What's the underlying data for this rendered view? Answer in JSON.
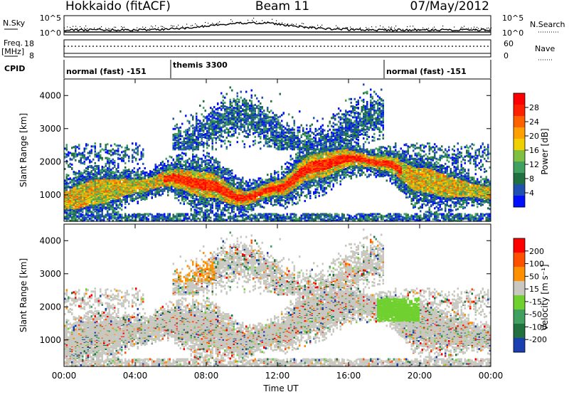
{
  "header": {
    "station": "Hokkaido (fitACF)",
    "beam": "Beam 11",
    "date": "07/May/2012"
  },
  "noise_panel": {
    "left_label": "N.Sky",
    "right_label": "N.Search",
    "left_ticks": [
      "10^5",
      "10^0"
    ],
    "right_ticks": [
      "10^5",
      "10^0"
    ]
  },
  "freq_panel": {
    "left_label_1": "Freq.",
    "left_label_2": "[MHz]",
    "right_label": "Nave",
    "left_ticks": [
      "18",
      "8"
    ],
    "right_ticks": [
      "60",
      "0"
    ]
  },
  "cpid": {
    "label": "CPID",
    "segments": [
      {
        "name": "normal (fast) -151",
        "start_h": 0,
        "end_h": 6
      },
      {
        "name": "themis 3300",
        "start_h": 6,
        "end_h": 18
      },
      {
        "name": "normal (fast) -151",
        "start_h": 18,
        "end_h": 24
      }
    ]
  },
  "power_panel": {
    "ylabel": "Slant Range [km]",
    "yticks": [
      "4000",
      "3000",
      "2000",
      "1000"
    ],
    "colorbar_label": "Power [dB]",
    "colorbar_ticks": [
      "28",
      "24",
      "20",
      "16",
      "12",
      "8",
      "4"
    ],
    "colors": [
      "#0010ff",
      "#2050b0",
      "#207040",
      "#40a060",
      "#80c040",
      "#f0d000",
      "#ffa000",
      "#ff6000",
      "#ff2000",
      "#ff0000"
    ]
  },
  "velocity_panel": {
    "ylabel": "Slant Range [km]",
    "yticks": [
      "4000",
      "3000",
      "2000",
      "1000"
    ],
    "colorbar_label": "Velocity [m s⁻¹]",
    "colorbar_ticks": [
      "200",
      "100",
      "50",
      "15",
      "-15",
      "-50",
      "-100",
      "-200"
    ],
    "colors": [
      "#1a3fb0",
      "#207040",
      "#40a060",
      "#70d030",
      "#c8c8c0",
      "#ff9000",
      "#ff5000",
      "#ff0000"
    ]
  },
  "x_axis": {
    "label": "Time UT",
    "ticks": [
      "00:00",
      "04:00",
      "08:00",
      "12:00",
      "16:00",
      "20:00",
      "00:00"
    ]
  },
  "chart_data": {
    "type": "heatmap",
    "title": "Hokkaido (fitACF) Beam 11 07/May/2012",
    "xlabel": "Time UT",
    "ylabel": "Slant Range [km]",
    "xlim": [
      "00:00",
      "24:00"
    ],
    "ylim": [
      200,
      4500
    ],
    "panels": [
      {
        "quantity": "Power",
        "unit": "dB",
        "color_range": [
          0,
          30
        ]
      },
      {
        "quantity": "Velocity",
        "unit": "m s-1",
        "color_range": [
          -250,
          250
        ]
      }
    ],
    "main_echo_band": {
      "time_h": [
        0,
        2,
        4,
        6,
        8,
        10,
        12,
        14,
        16,
        18,
        20,
        22,
        24
      ],
      "slant_range_km": [
        900,
        1150,
        1300,
        1550,
        1350,
        950,
        1250,
        1900,
        2150,
        2000,
        1500,
        1250,
        1100
      ]
    }
  }
}
